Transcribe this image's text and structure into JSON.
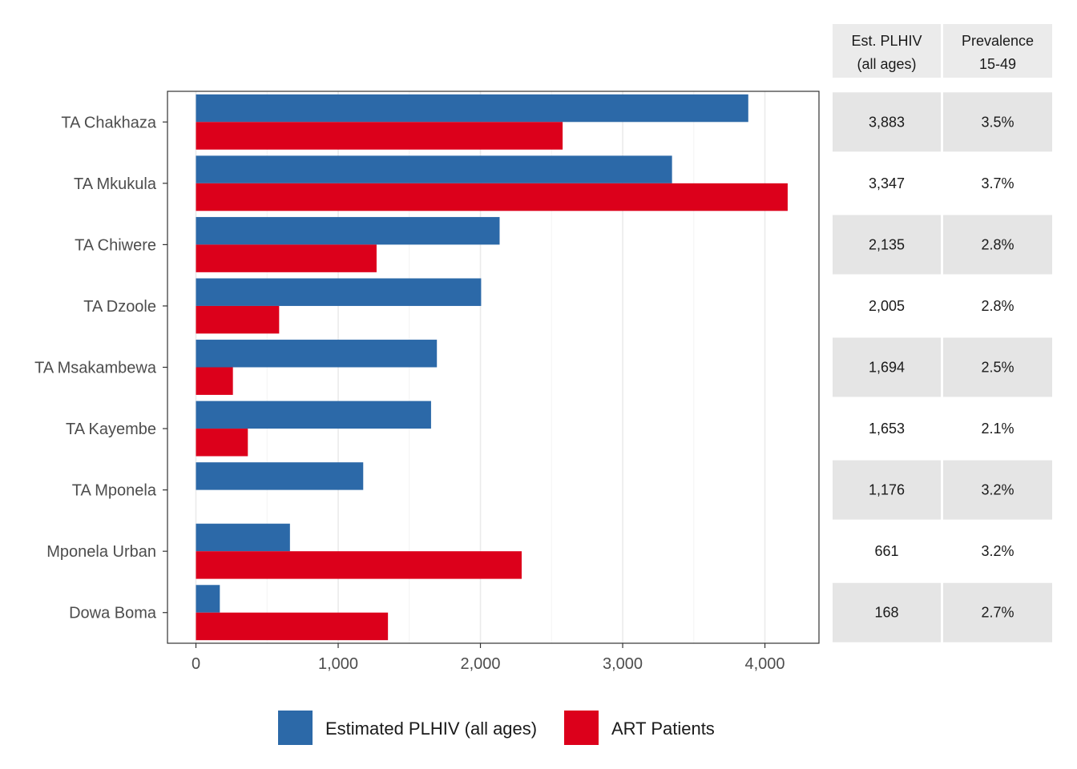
{
  "chart_data": {
    "type": "bar",
    "orientation": "horizontal",
    "categories": [
      "TA Chakhaza",
      "TA Mkukula",
      "TA Chiwere",
      "TA Dzoole",
      "TA Msakambewa",
      "TA Kayembe",
      "TA Mponela",
      "Mponela Urban",
      "Dowa Boma"
    ],
    "series": [
      {
        "name": "Estimated PLHIV (all ages)",
        "color": "#2c69a8",
        "values": [
          3883,
          3347,
          2135,
          2005,
          1694,
          1653,
          1176,
          661,
          168
        ]
      },
      {
        "name": "ART Patients",
        "color": "#dc001b",
        "values": [
          2578,
          4160,
          1270,
          585,
          260,
          365,
          0,
          2290,
          1350
        ]
      }
    ],
    "xlim": [
      -200,
      4380
    ],
    "x_ticks": [
      0,
      1000,
      2000,
      3000,
      4000
    ],
    "x_tick_labels": [
      "0",
      "1,000",
      "2,000",
      "3,000",
      "4,000"
    ],
    "grid": true,
    "legend_position": "bottom",
    "table": {
      "headers": [
        [
          "Est. PLHIV",
          "(all ages)"
        ],
        [
          "Prevalence",
          "15-49"
        ]
      ],
      "rows": [
        [
          "3,883",
          "3.5%"
        ],
        [
          "3,347",
          "3.7%"
        ],
        [
          "2,135",
          "2.8%"
        ],
        [
          "2,005",
          "2.8%"
        ],
        [
          "1,694",
          "2.5%"
        ],
        [
          "1,653",
          "2.1%"
        ],
        [
          "1,176",
          "3.2%"
        ],
        [
          "661",
          "3.2%"
        ],
        [
          "168",
          "2.7%"
        ]
      ]
    }
  }
}
